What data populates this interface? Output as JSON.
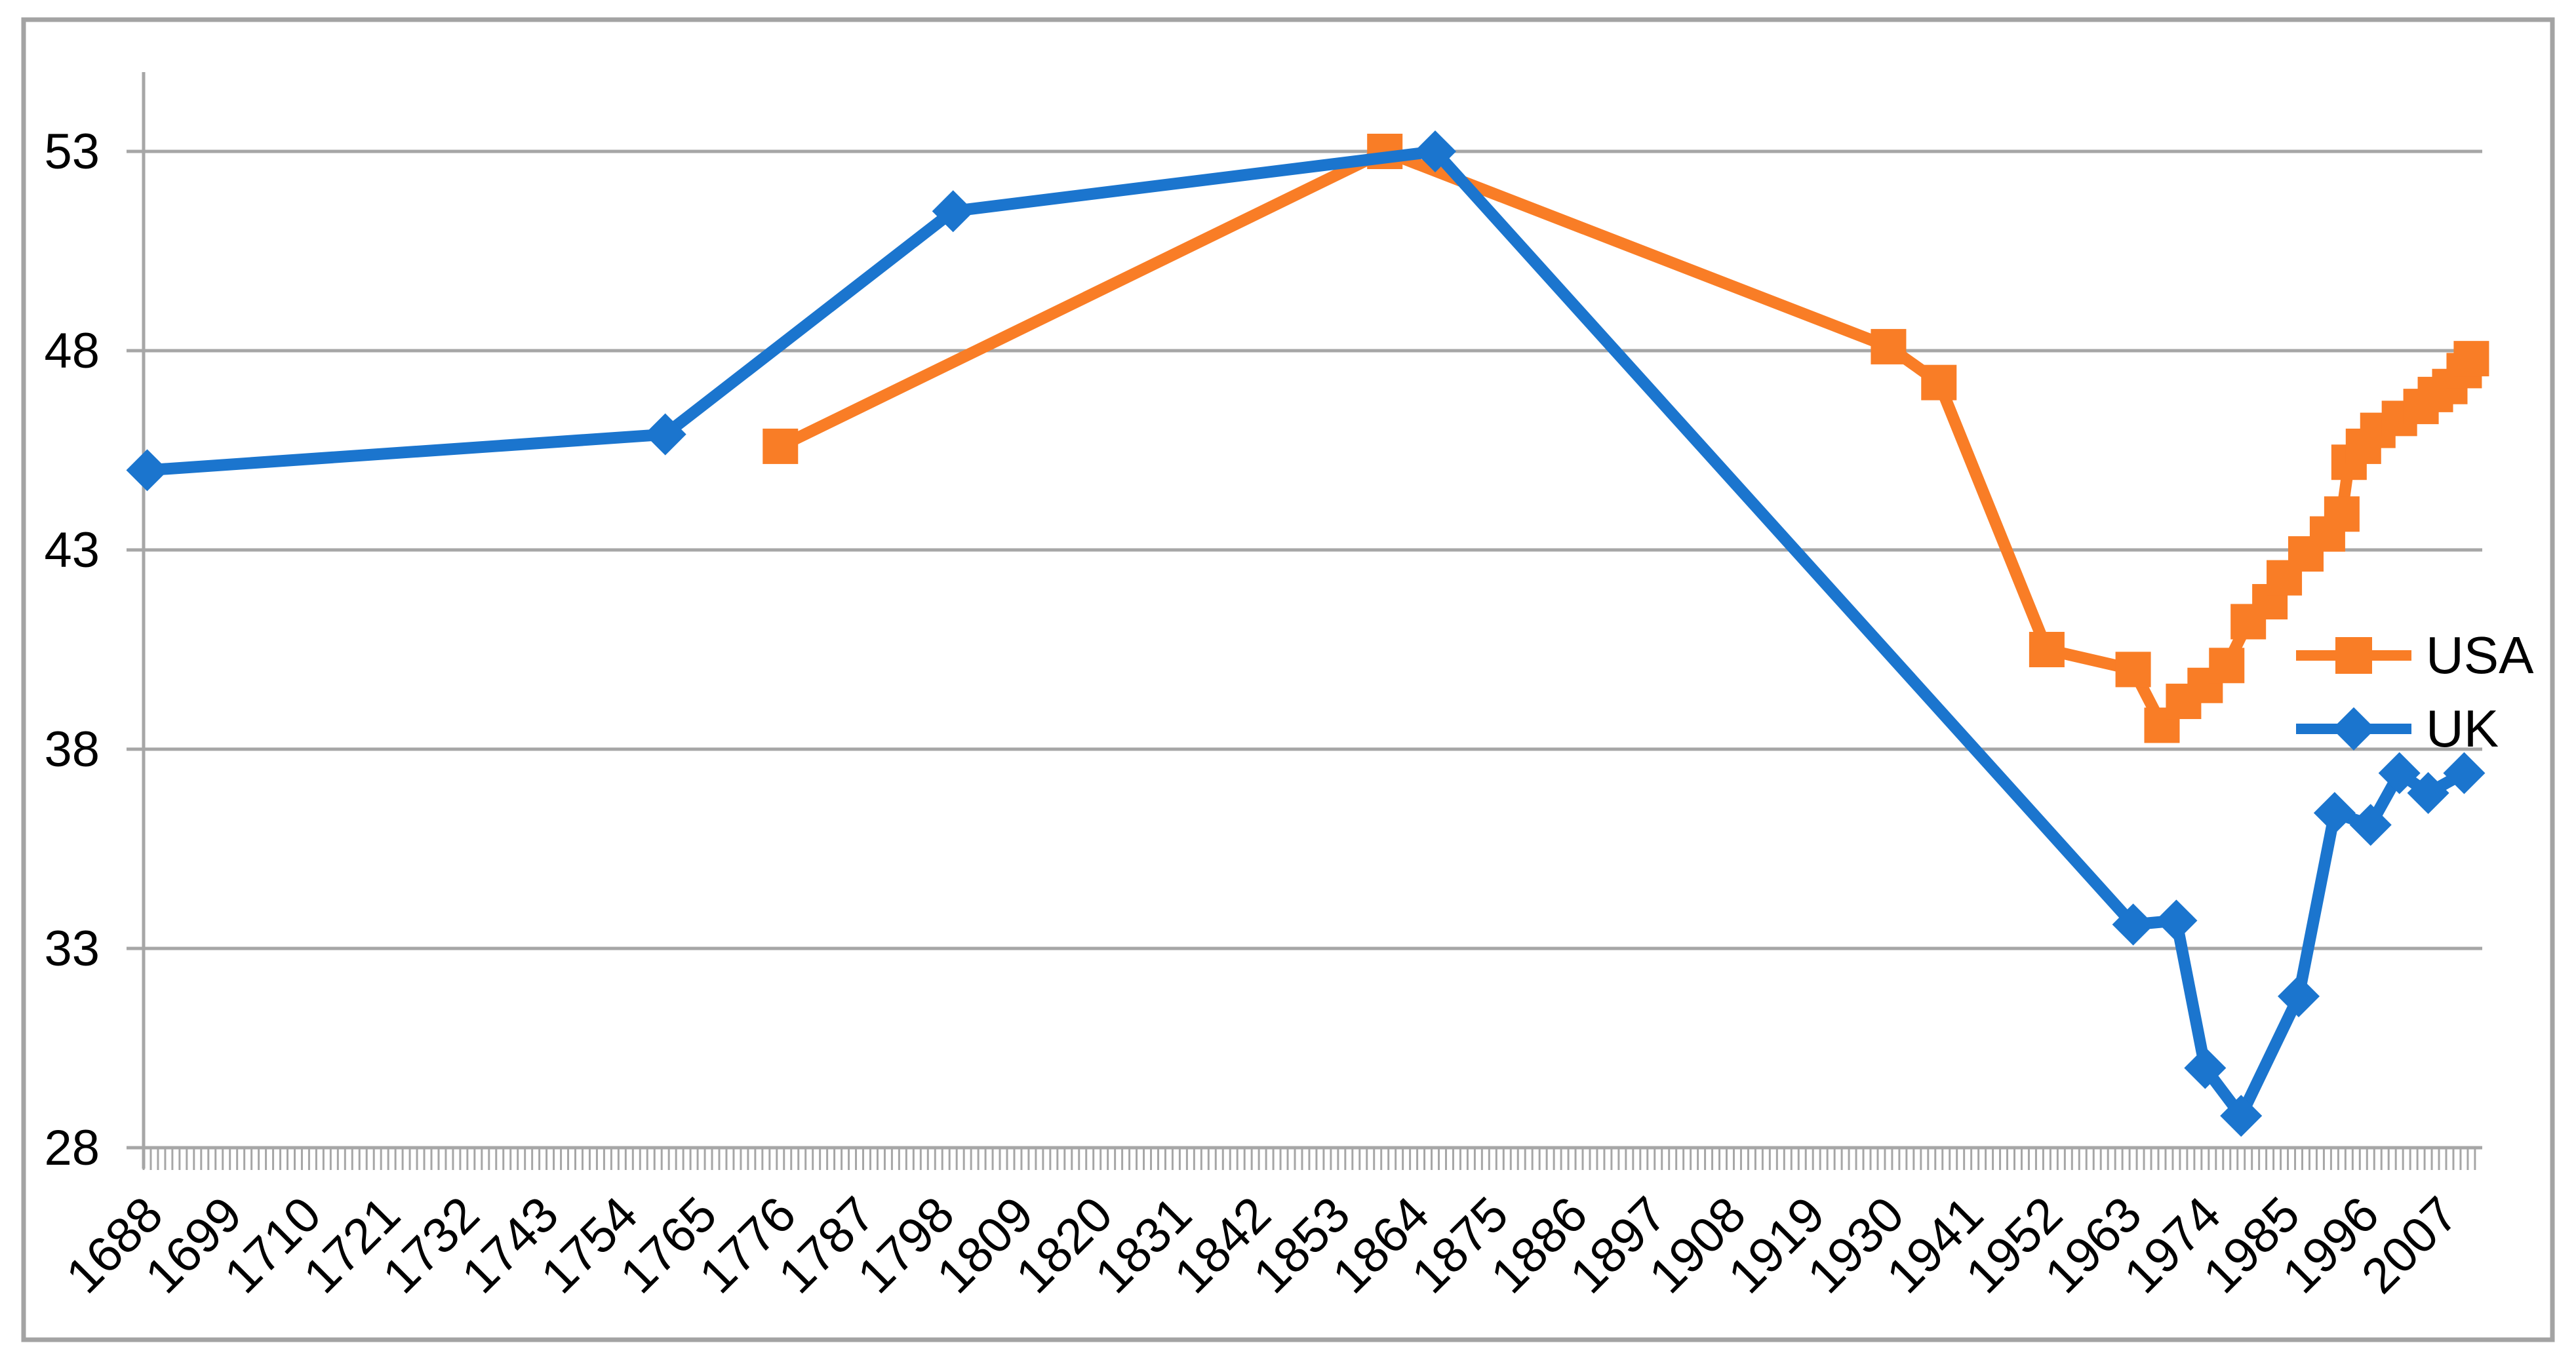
{
  "page": {
    "background": "#ffffff",
    "frame_color": "#a3a3a3",
    "grid_color": "#a6a6a6"
  },
  "chart_data": {
    "type": "line",
    "title": "",
    "xlabel": "",
    "ylabel": "",
    "grid": true,
    "x_axis": {
      "labels": [
        "1688",
        "1699",
        "1710",
        "1721",
        "1732",
        "1743",
        "1754",
        "1765",
        "1776",
        "1787",
        "1798",
        "1809",
        "1820",
        "1831",
        "1842",
        "1853",
        "1864",
        "1875",
        "1886",
        "1897",
        "1908",
        "1919",
        "1930",
        "1941",
        "1952",
        "1963",
        "1974",
        "1985",
        "1996",
        "2007"
      ],
      "label_start_year": 1688,
      "label_interval_years": 11,
      "minor_tick_interval_years": 1,
      "range": [
        1688,
        2012
      ],
      "label_rotation_deg": -45
    },
    "y_axis": {
      "tick_labels": [
        "28",
        "33",
        "38",
        "43",
        "48",
        "53"
      ],
      "min": 28,
      "max": 55,
      "tick_step": 5
    },
    "legend": {
      "position": "right-middle",
      "entries": [
        {
          "label": "USA",
          "marker": "square",
          "color": "#f97d26"
        },
        {
          "label": "UK",
          "marker": "diamond",
          "color": "#1b75ce"
        }
      ]
    },
    "series": [
      {
        "name": "USA",
        "color": "#f97d26",
        "marker": "square",
        "points": [
          [
            1776,
            45.6
          ],
          [
            1860,
            53.0
          ],
          [
            1930,
            48.1
          ],
          [
            1937,
            47.2
          ],
          [
            1952,
            40.5
          ],
          [
            1964,
            40.0
          ],
          [
            1968,
            38.6
          ],
          [
            1971,
            39.2
          ],
          [
            1974,
            39.6
          ],
          [
            1977,
            40.1
          ],
          [
            1980,
            41.2
          ],
          [
            1983,
            41.7
          ],
          [
            1985,
            42.3
          ],
          [
            1988,
            42.9
          ],
          [
            1991,
            43.4
          ],
          [
            1993,
            43.9
          ],
          [
            1994,
            45.2
          ],
          [
            1996,
            45.6
          ],
          [
            1998,
            46.0
          ],
          [
            2001,
            46.3
          ],
          [
            2004,
            46.6
          ],
          [
            2006,
            46.9
          ],
          [
            2008,
            47.1
          ],
          [
            2010,
            47.5
          ],
          [
            2011,
            47.8
          ]
        ]
      },
      {
        "name": "UK",
        "color": "#1b75ce",
        "marker": "diamond",
        "points": [
          [
            1688,
            45.0
          ],
          [
            1760,
            45.9
          ],
          [
            1800,
            51.5
          ],
          [
            1867,
            53.0
          ],
          [
            1964,
            33.6
          ],
          [
            1970,
            33.7
          ],
          [
            1974,
            30.0
          ],
          [
            1979,
            28.8
          ],
          [
            1987,
            31.8
          ],
          [
            1992,
            36.4
          ],
          [
            1997,
            36.1
          ],
          [
            2001,
            37.4
          ],
          [
            2005,
            36.9
          ],
          [
            2010,
            37.4
          ]
        ]
      }
    ]
  }
}
